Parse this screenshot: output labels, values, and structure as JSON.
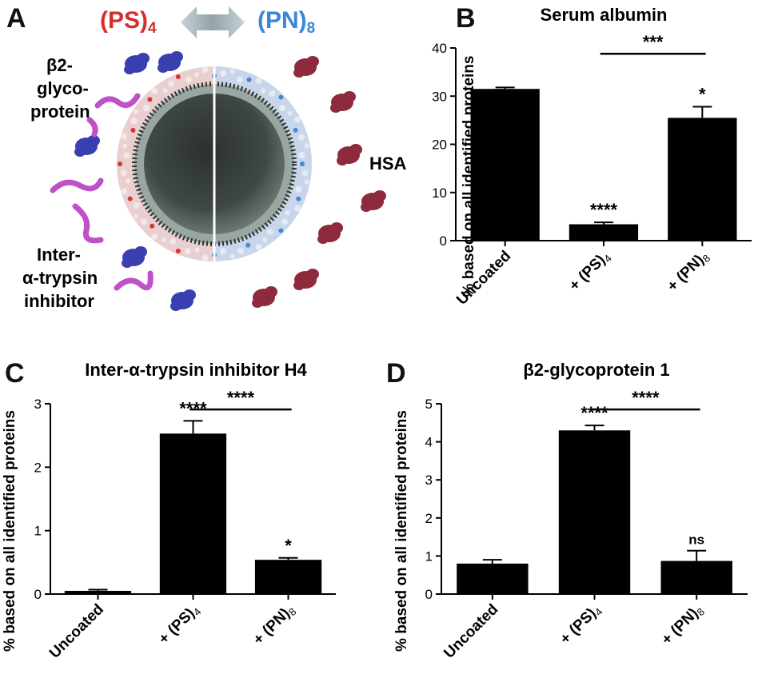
{
  "panel_a": {
    "letter": "A",
    "ps_label": "(PS)",
    "ps_sub": "4",
    "pn_label": "(PN)",
    "pn_sub": "8",
    "b2_label": [
      "β2-",
      "glyco-",
      "protein"
    ],
    "hsa_label": "HSA",
    "iti_label": [
      "Inter-",
      "α-trypsin",
      "inhibitor"
    ],
    "colors": {
      "ps": "#d62d2d",
      "pn": "#3a86d8",
      "b2_protein": "#3a3fb0",
      "iti_protein": "#c050c8",
      "hsa_protein": "#8e2a3c",
      "lipid": "#8f9c96",
      "coat_ps": "#e9cfcf",
      "coat_pn": "#c9d6ea"
    }
  },
  "chart_data": [
    {
      "panel": "B",
      "type": "bar",
      "title": "Serum albumin",
      "ylabel": "% based on all identified proteins",
      "categories": [
        "Uncoated",
        "+ (PS)4",
        "+ (PN)8"
      ],
      "cat_main": [
        "Uncoated",
        "+ (PS)",
        "+ (PN)"
      ],
      "cat_sub": [
        "",
        "4",
        "8"
      ],
      "values": [
        31.5,
        3.4,
        25.5
      ],
      "errors": [
        0.3,
        0.4,
        2.3
      ],
      "ylim": [
        0,
        40
      ],
      "yticks": [
        0,
        10,
        20,
        30,
        40
      ],
      "bar_stars": [
        "",
        "****",
        "*"
      ],
      "bracket": {
        "from": 1,
        "to": 2,
        "label": "***"
      }
    },
    {
      "panel": "C",
      "type": "bar",
      "title": "Inter-α-trypsin inhibitor H4",
      "ylabel": "% based on all identified proteins",
      "categories": [
        "Uncoated",
        "+ (PS)4",
        "+ (PN)8"
      ],
      "cat_main": [
        "Uncoated",
        "+ (PS)",
        "+ (PN)"
      ],
      "cat_sub": [
        "",
        "4",
        "8"
      ],
      "values": [
        0.05,
        2.53,
        0.54
      ],
      "errors": [
        0.02,
        0.2,
        0.03
      ],
      "ylim": [
        0,
        3
      ],
      "yticks": [
        0,
        1,
        2,
        3
      ],
      "bar_stars": [
        "",
        "****",
        "*"
      ],
      "bracket": {
        "from": 1,
        "to": 2,
        "label": "****"
      }
    },
    {
      "panel": "D",
      "type": "bar",
      "title": "β2-glycoprotein 1",
      "ylabel": "% based on all identified proteins",
      "categories": [
        "Uncoated",
        "+ (PS)4",
        "+ (PN)8"
      ],
      "cat_main": [
        "Uncoated",
        "+ (PS)",
        "+ (PN)"
      ],
      "cat_sub": [
        "",
        "4",
        "8"
      ],
      "values": [
        0.8,
        4.3,
        0.87
      ],
      "errors": [
        0.1,
        0.13,
        0.27
      ],
      "ylim": [
        0,
        5
      ],
      "yticks": [
        0,
        1,
        2,
        3,
        4,
        5
      ],
      "bar_stars": [
        "",
        "****",
        "ns"
      ],
      "bracket": {
        "from": 1,
        "to": 2,
        "label": "****"
      }
    }
  ]
}
